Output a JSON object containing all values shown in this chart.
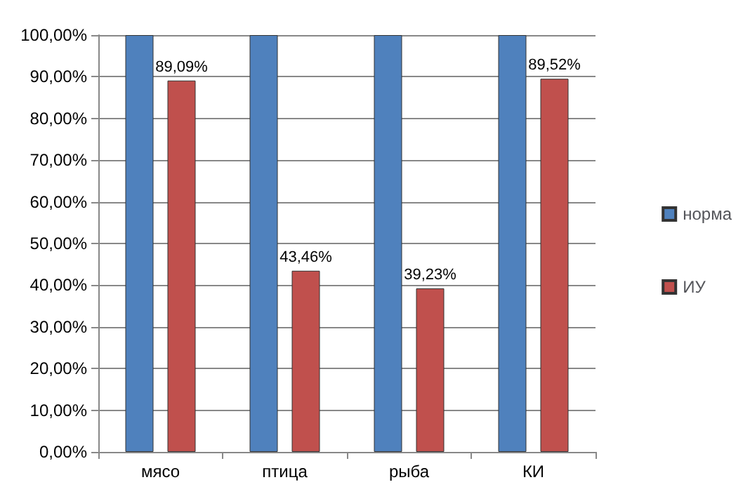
{
  "chart_data": {
    "type": "bar",
    "categories": [
      "мясо",
      "птица",
      "рыба",
      "КИ"
    ],
    "series": [
      {
        "name": "норма",
        "color": "#4f81bd",
        "values": [
          100,
          100,
          100,
          100
        ]
      },
      {
        "name": "ИУ",
        "color": "#c0504d",
        "values": [
          89.09,
          43.46,
          39.23,
          89.52
        ],
        "value_labels": [
          "89,09%",
          "43,46%",
          "39,23%",
          "89,52%"
        ]
      }
    ],
    "ylim": [
      0,
      100
    ],
    "yticks": [
      {
        "value": 0,
        "label": "0,00%"
      },
      {
        "value": 10,
        "label": "10,00%"
      },
      {
        "value": 20,
        "label": "20,00%"
      },
      {
        "value": 30,
        "label": "30,00%"
      },
      {
        "value": 40,
        "label": "40,00%"
      },
      {
        "value": 50,
        "label": "50,00%"
      },
      {
        "value": 60,
        "label": "60,00%"
      },
      {
        "value": 70,
        "label": "70,00%"
      },
      {
        "value": 80,
        "label": "80,00%"
      },
      {
        "value": 90,
        "label": "90,00%"
      },
      {
        "value": 100,
        "label": "100,00%"
      }
    ],
    "grid": "y",
    "legend": "right"
  }
}
